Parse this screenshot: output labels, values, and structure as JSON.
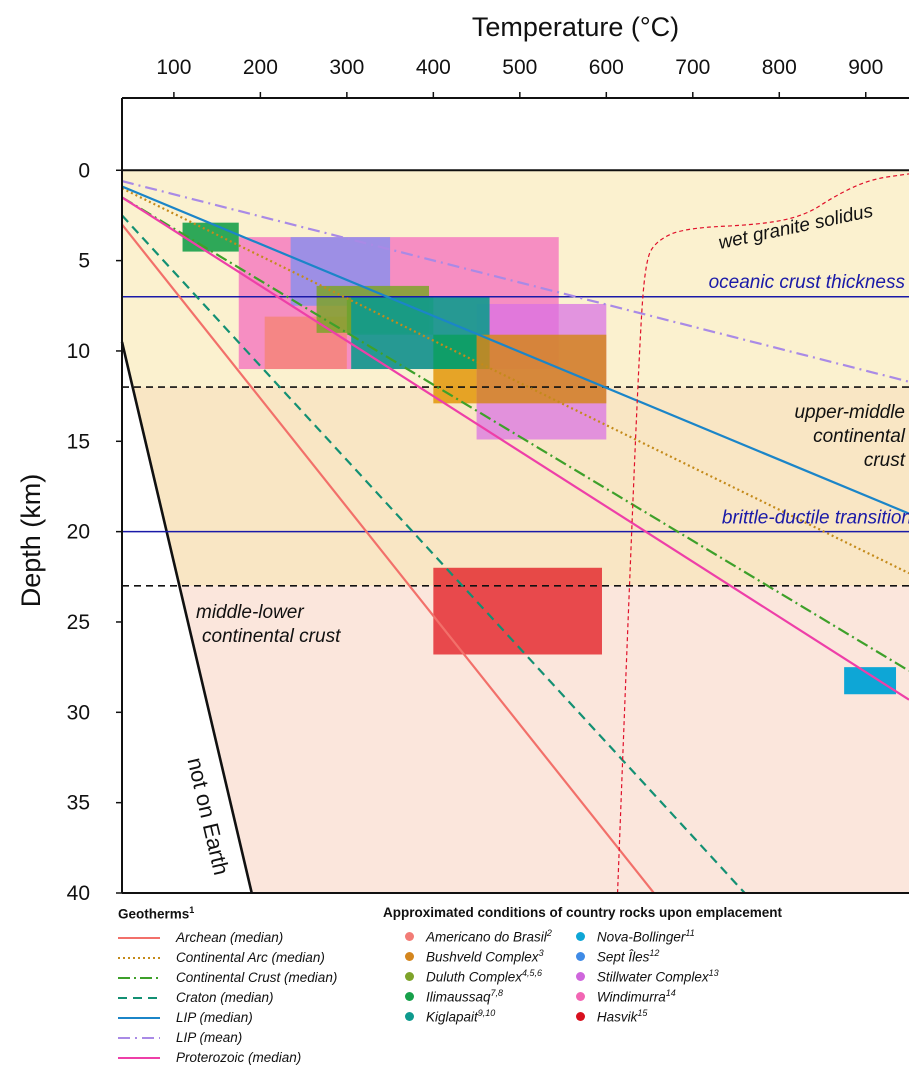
{
  "chart_data": {
    "type": "line",
    "title": "",
    "xlabel": "Temperature (°C)",
    "ylabel": "Depth (km)",
    "x_axis_position": "top",
    "y_inverted": true,
    "xlim": [
      40,
      950
    ],
    "ylim": [
      -4,
      40
    ],
    "xticks": [
      100,
      200,
      300,
      400,
      500,
      600,
      700,
      800,
      900
    ],
    "yticks": [
      0,
      5,
      10,
      15,
      20,
      25,
      30,
      35,
      40
    ],
    "grid": false,
    "zones": [
      {
        "label": "",
        "y": [
          0,
          12
        ],
        "color": "#fbf1cf"
      },
      {
        "label": "upper-middle\ncontinental\ncrust",
        "y": [
          12,
          23
        ],
        "color": "#f9e6c4"
      },
      {
        "label": "middle-lower\ncontinental crust",
        "y": [
          23,
          40
        ],
        "color": "#fbe6dc"
      }
    ],
    "reference_lines": [
      {
        "label": "oceanic crust thickness",
        "depth": 7,
        "color": "#1a1aa8",
        "style": "solid"
      },
      {
        "label": "brittle-ductile transition",
        "depth": 20,
        "color": "#1a1aa8",
        "style": "solid"
      },
      {
        "label": "",
        "depth": 12,
        "color": "#111111",
        "style": "dashed"
      },
      {
        "label": "",
        "depth": 23,
        "color": "#111111",
        "style": "dashed"
      }
    ],
    "annotations": {
      "solidus_label": "wet granite solidus",
      "not_on_earth": "not on Earth"
    },
    "not_on_earth_boundary": [
      [
        40,
        9.5
      ],
      [
        190,
        40
      ]
    ],
    "solidus": {
      "label": "wet granite solidus",
      "color": "#e0102a",
      "points": [
        [
          613,
          40
        ],
        [
          625,
          25
        ],
        [
          638,
          10
        ],
        [
          645,
          5
        ],
        [
          658,
          3.9
        ],
        [
          690,
          3.2
        ],
        [
          780,
          3.0
        ],
        [
          830,
          2.5
        ],
        [
          865,
          1.4
        ],
        [
          905,
          0.5
        ],
        [
          950,
          0.2
        ]
      ]
    },
    "legend_geotherms_title": "Geotherms",
    "legend_geotherms_title_sup": "1",
    "series": [
      {
        "name": "Archean (median)",
        "color": "#f2706a",
        "dash": "",
        "points": [
          [
            40,
            3.0
          ],
          [
            655,
            40
          ]
        ]
      },
      {
        "name": "Continental Arc (median)",
        "color": "#c48a1a",
        "dash": "2,3",
        "points": [
          [
            40,
            1.0
          ],
          [
            950,
            22.3
          ]
        ]
      },
      {
        "name": "Continental Crust (median)",
        "color": "#3ea02a",
        "dash": "12,4,2,4",
        "points": [
          [
            40,
            1.5
          ],
          [
            950,
            27.7
          ]
        ]
      },
      {
        "name": "Craton (median)",
        "color": "#139073",
        "dash": "9,6",
        "points": [
          [
            40,
            2.5
          ],
          [
            760,
            40
          ]
        ]
      },
      {
        "name": "LIP (median)",
        "color": "#1b85c8",
        "dash": "",
        "points": [
          [
            40,
            0.9
          ],
          [
            950,
            19.0
          ]
        ]
      },
      {
        "name": "LIP (mean)",
        "color": "#a98ae6",
        "dash": "12,5,2,5",
        "points": [
          [
            40,
            0.6
          ],
          [
            950,
            11.7
          ]
        ]
      },
      {
        "name": "Proterozoic (median)",
        "color": "#ee3fa8",
        "dash": "",
        "points": [
          [
            40,
            1.5
          ],
          [
            950,
            29.3
          ]
        ]
      }
    ],
    "legend_rocks_title": "Approximated conditions of country rocks upon emplacement",
    "rock_legend": [
      {
        "name": "Americano do Brasil",
        "sup": "2",
        "color": "#f27c76"
      },
      {
        "name": "Bushveld Complex",
        "sup": "3",
        "color": "#d4861e"
      },
      {
        "name": "Duluth Complex",
        "sup": "4,5,6",
        "color": "#7ea32a"
      },
      {
        "name": "Ilimaussaq",
        "sup": "7,8",
        "color": "#17a04a"
      },
      {
        "name": "Kiglapait",
        "sup": "9,10",
        "color": "#0f9a8e"
      },
      {
        "name": "Nova-Bollinger",
        "sup": "11",
        "color": "#0ea6d6"
      },
      {
        "name": "Sept Îles",
        "sup": "12",
        "color": "#3f8be6"
      },
      {
        "name": "Stillwater Complex",
        "sup": "13",
        "color": "#cf66dc"
      },
      {
        "name": "Windimurra",
        "sup": "14",
        "color": "#f266b4"
      },
      {
        "name": "Hasvik",
        "sup": "15",
        "color": "#d8101e"
      }
    ],
    "boxes": [
      {
        "name": "Windimurra",
        "x": [
          175,
          545
        ],
        "y": [
          3.7,
          11.0
        ],
        "color": "#f47cc0",
        "opacity": 0.85
      },
      {
        "name": "Sept Îles",
        "x": [
          235,
          350
        ],
        "y": [
          3.7,
          7.5
        ],
        "color": "#7f8ff0",
        "opacity": 0.75
      },
      {
        "name": "Ilimaussaq",
        "x": [
          110,
          175
        ],
        "y": [
          2.9,
          4.5
        ],
        "color": "#17a04a",
        "opacity": 0.9
      },
      {
        "name": "Stillwater Complex",
        "x": [
          450,
          600
        ],
        "y": [
          7.4,
          14.9
        ],
        "color": "#d870e4",
        "opacity": 0.72
      },
      {
        "name": "Americano do Brasil",
        "x": [
          205,
          300
        ],
        "y": [
          8.1,
          11.0
        ],
        "color": "#f5857a",
        "opacity": 0.85
      },
      {
        "name": "Duluth Complex",
        "x": [
          265,
          395
        ],
        "y": [
          6.4,
          9.0
        ],
        "color": "#7ea32a",
        "opacity": 0.85
      },
      {
        "name": "Duluth Complex",
        "x": [
          300,
          400
        ],
        "y": [
          7.0,
          9.1
        ],
        "color": "#6fa22e",
        "opacity": 0.9
      },
      {
        "name": "Kiglapait",
        "x": [
          305,
          465
        ],
        "y": [
          7.0,
          11.0
        ],
        "color": "#0f9a8e",
        "opacity": 0.9
      },
      {
        "name": "Ilimaussaq",
        "x": [
          400,
          465
        ],
        "y": [
          9.1,
          11.0
        ],
        "color": "#0d9e64",
        "opacity": 0.9
      },
      {
        "name": "Bushveld Complex",
        "x": [
          450,
          600
        ],
        "y": [
          9.1,
          12.9
        ],
        "color": "#d4861e",
        "opacity": 0.85
      },
      {
        "name": "Bushveld Complex",
        "x": [
          400,
          450
        ],
        "y": [
          11.0,
          12.9
        ],
        "color": "#e39b14",
        "opacity": 0.9
      },
      {
        "name": "Hasvik",
        "x": [
          400,
          595
        ],
        "y": [
          22.0,
          26.8
        ],
        "color": "#e3262c",
        "opacity": 0.82
      },
      {
        "name": "Nova-Bollinger",
        "x": [
          875,
          935
        ],
        "y": [
          27.5,
          29.0
        ],
        "color": "#0ea6d6",
        "opacity": 1.0
      }
    ]
  }
}
